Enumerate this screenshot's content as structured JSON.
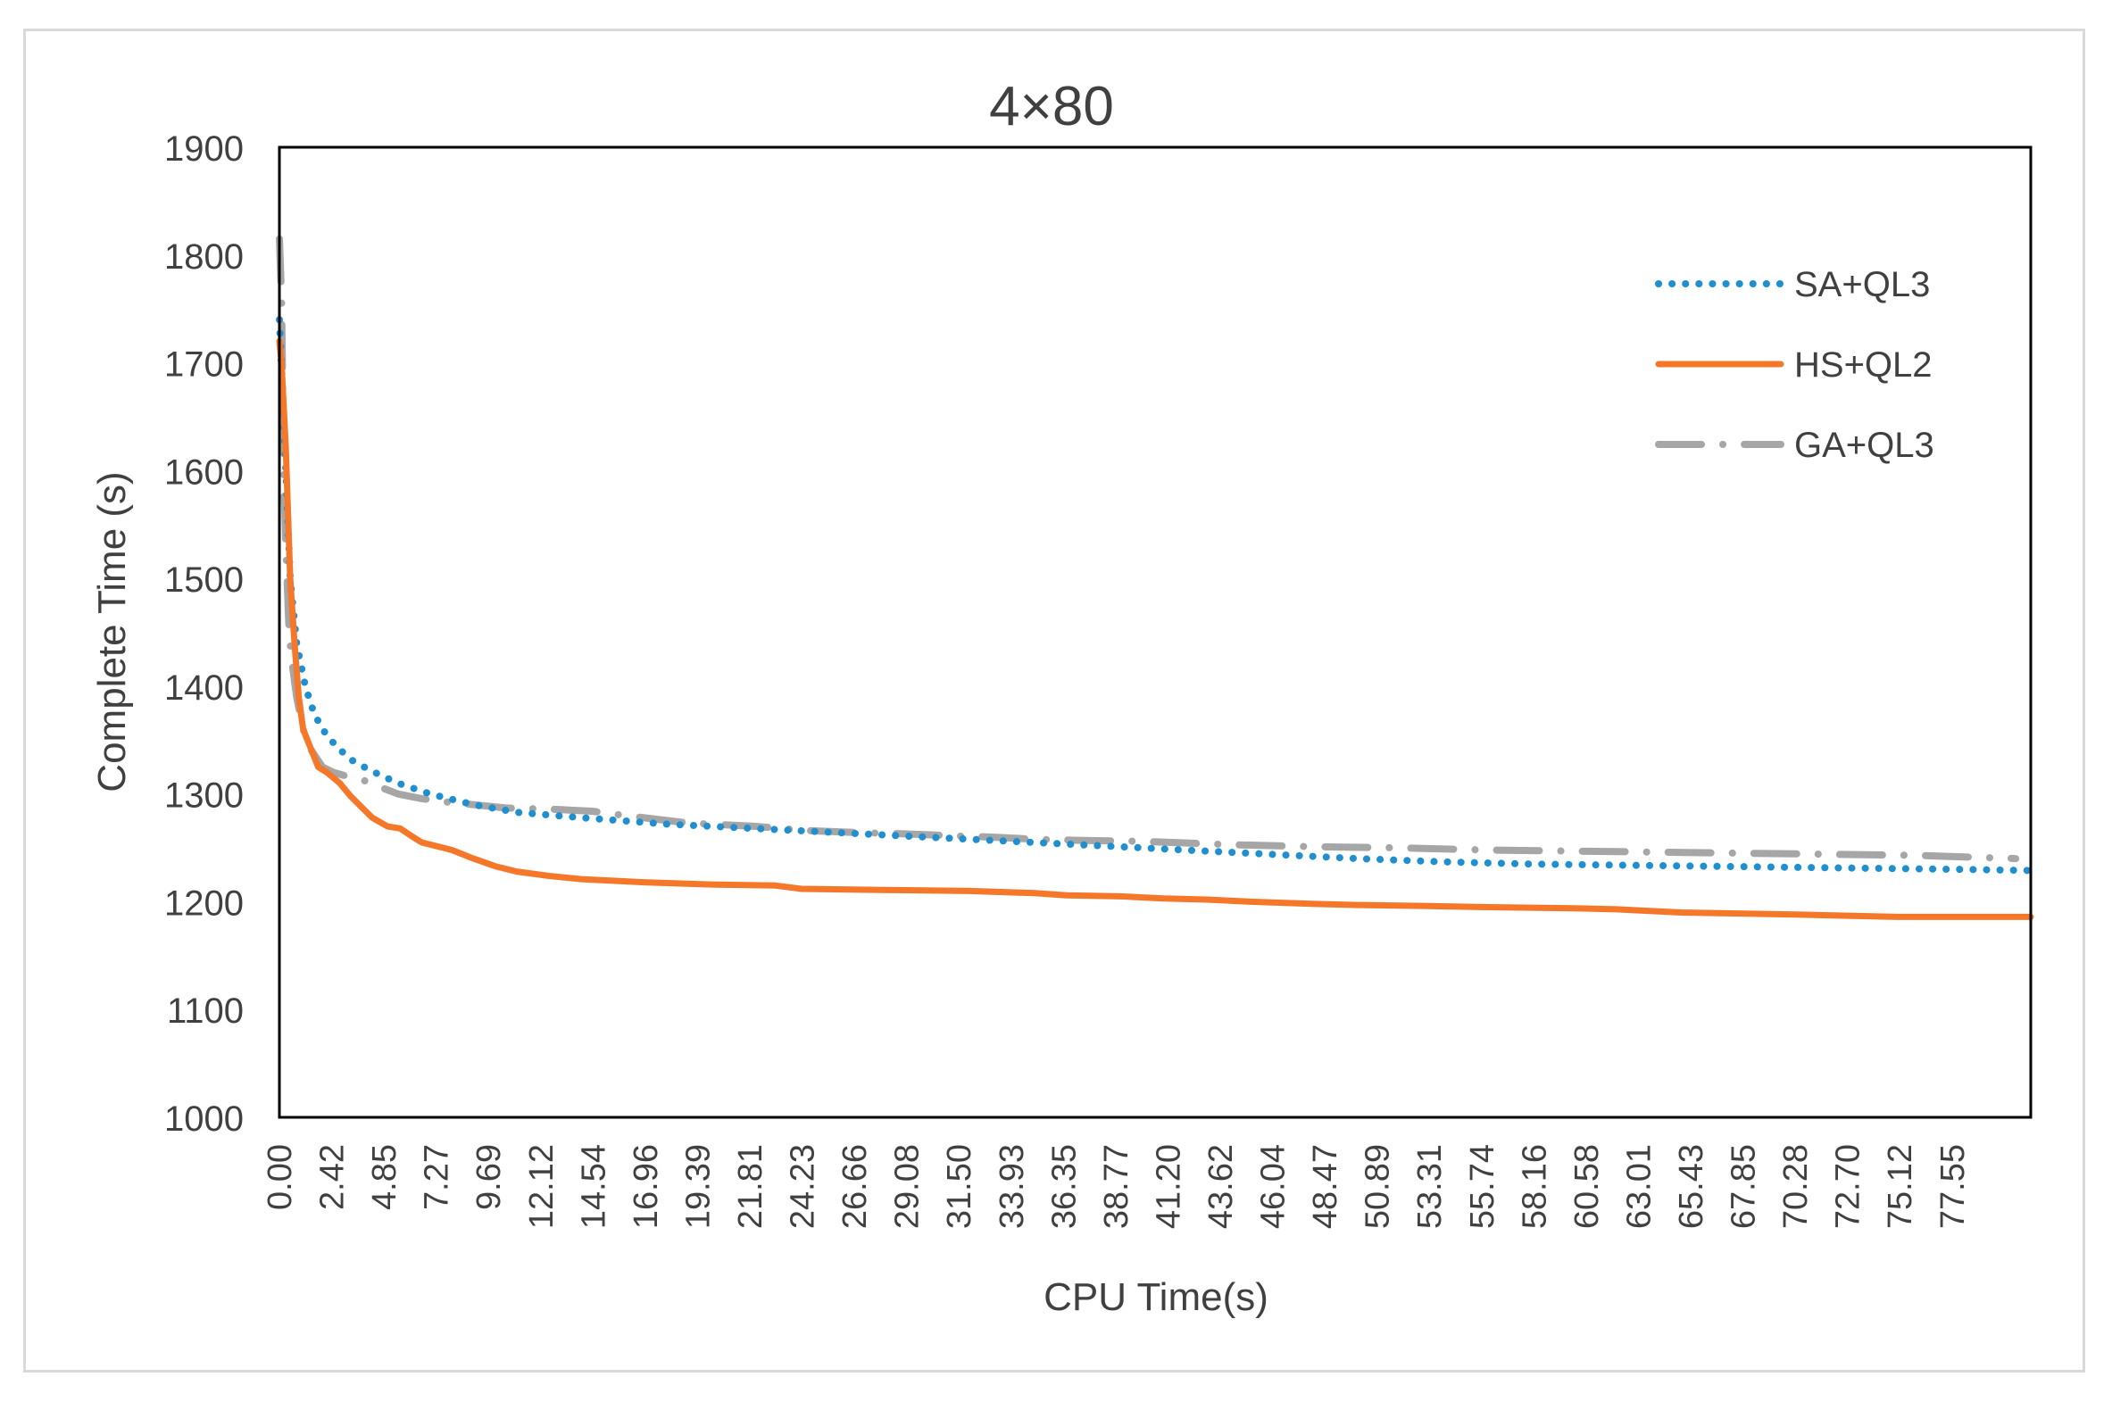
{
  "chart_data": {
    "type": "line",
    "title": "4×80",
    "xlabel": "CPU Time(s)",
    "ylabel": "Complete Time (s)",
    "xlim": [
      0,
      81.2
    ],
    "ylim": [
      1000,
      1900
    ],
    "yticks": [
      1000,
      1100,
      1200,
      1300,
      1400,
      1500,
      1600,
      1700,
      1800,
      1900
    ],
    "xtick_labels": [
      "0.00",
      "2.42",
      "4.85",
      "7.27",
      "9.69",
      "12.12",
      "14.54",
      "16.96",
      "19.39",
      "21.81",
      "24.23",
      "26.66",
      "29.08",
      "31.50",
      "33.93",
      "36.35",
      "38.77",
      "41.20",
      "43.62",
      "46.04",
      "48.47",
      "50.89",
      "53.31",
      "55.74",
      "58.16",
      "60.58",
      "63.01",
      "65.43",
      "67.85",
      "70.28",
      "72.70",
      "75.12",
      "77.55"
    ],
    "grid": false,
    "legend_position": "top-right",
    "series": [
      {
        "name": "SA+QL3",
        "color": "#1f8fd0",
        "style": "dotted",
        "x": [
          0,
          0.2,
          0.5,
          0.8,
          1.2,
          1.6,
          2.0,
          2.6,
          3.3,
          4.2,
          5.5,
          7.0,
          9.0,
          11.0,
          14.0,
          18.0,
          22.0,
          26.0,
          30.0,
          34.0,
          38.0,
          42.0,
          46.0,
          50.0,
          54.0,
          58.0,
          62.0,
          66.0,
          70.0,
          74.0,
          78.0,
          81.2
        ],
        "y": [
          1740,
          1650,
          1500,
          1440,
          1400,
          1375,
          1360,
          1345,
          1332,
          1322,
          1310,
          1300,
          1290,
          1283,
          1278,
          1272,
          1268,
          1264,
          1260,
          1256,
          1252,
          1248,
          1244,
          1240,
          1237,
          1235,
          1234,
          1233,
          1232,
          1231,
          1230,
          1229
        ]
      },
      {
        "name": "HS+QL2",
        "color": "#f5782a",
        "style": "solid",
        "x": [
          0,
          0.1,
          0.3,
          0.5,
          0.7,
          0.9,
          1.1,
          1.4,
          1.8,
          2.2,
          2.8,
          3.3,
          3.8,
          4.3,
          5.0,
          5.6,
          6.2,
          6.6,
          7.2,
          8.0,
          9.0,
          10.0,
          11.0,
          12.5,
          14.0,
          17.0,
          20.0,
          23.0,
          24.2,
          28.0,
          32.0,
          35.0,
          36.5,
          39.0,
          41.0,
          43.0,
          45.0,
          48.0,
          50.0,
          53.3,
          56.0,
          60.0,
          62.0,
          63.0,
          65.0,
          68.0,
          70.5,
          72.7,
          75.0,
          81.2
        ],
        "y": [
          1720,
          1700,
          1620,
          1500,
          1440,
          1390,
          1360,
          1345,
          1325,
          1320,
          1310,
          1298,
          1288,
          1278,
          1270,
          1268,
          1260,
          1255,
          1252,
          1248,
          1240,
          1233,
          1228,
          1224,
          1221,
          1218,
          1216,
          1215,
          1212,
          1211,
          1210,
          1208,
          1206,
          1205,
          1203,
          1202,
          1200,
          1198,
          1197,
          1196,
          1195,
          1194,
          1193,
          1192,
          1190,
          1189,
          1188,
          1187,
          1186,
          1186
        ]
      },
      {
        "name": "GA+QL3",
        "color": "#a6a6a6",
        "style": "dash-dot",
        "x": [
          0,
          0.1,
          0.2,
          0.3,
          0.45,
          0.6,
          0.8,
          1.1,
          1.5,
          2.0,
          2.5,
          3.2,
          4.0,
          4.85,
          5.5,
          6.5,
          7.5,
          9.0,
          10.5,
          12.5,
          14.5,
          16.0,
          19.0,
          22.0,
          24.5,
          27.0,
          29.0,
          31.5,
          33.0,
          35.0,
          37.0,
          40.0,
          44.0,
          48.0,
          52.0,
          56.0,
          60.0,
          64.0,
          68.0,
          72.0,
          76.0,
          80.5
        ],
        "y": [
          1815,
          1760,
          1600,
          1530,
          1450,
          1420,
          1390,
          1360,
          1340,
          1325,
          1320,
          1316,
          1312,
          1305,
          1300,
          1296,
          1293,
          1290,
          1287,
          1286,
          1284,
          1280,
          1273,
          1270,
          1266,
          1264,
          1263,
          1261,
          1260,
          1258,
          1257,
          1256,
          1253,
          1251,
          1250,
          1248,
          1247,
          1246,
          1245,
          1244,
          1243,
          1240
        ]
      }
    ]
  }
}
